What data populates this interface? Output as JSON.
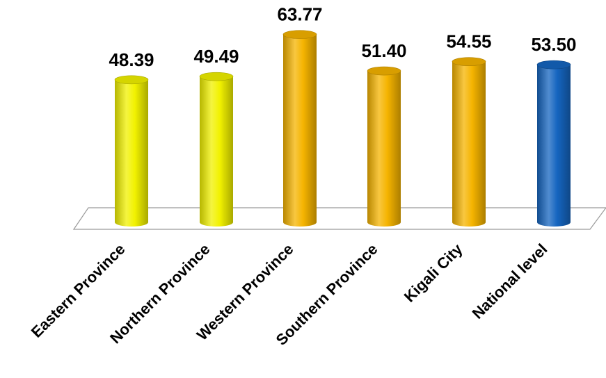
{
  "chart_data": {
    "type": "bar",
    "style": "3d-cylinder",
    "categories": [
      "Eastern Province",
      "Northern Province",
      "Western Province",
      "Southern Province",
      "Kigali City",
      "National level"
    ],
    "values": [
      48.39,
      49.49,
      63.77,
      51.4,
      54.55,
      53.5
    ],
    "value_labels": [
      "48.39",
      "49.49",
      "63.77",
      "51.40",
      "54.55",
      "53.50"
    ],
    "title": "",
    "xlabel": "",
    "ylabel": "",
    "ylim": [
      0,
      70
    ],
    "grid": false,
    "legend": "none",
    "colors": {
      "yellow": "#f2f200",
      "orange": "#f5b400",
      "blue": "#1565c0",
      "bar_color_groups": [
        "yellow",
        "yellow",
        "orange",
        "orange",
        "orange",
        "blue"
      ]
    }
  }
}
